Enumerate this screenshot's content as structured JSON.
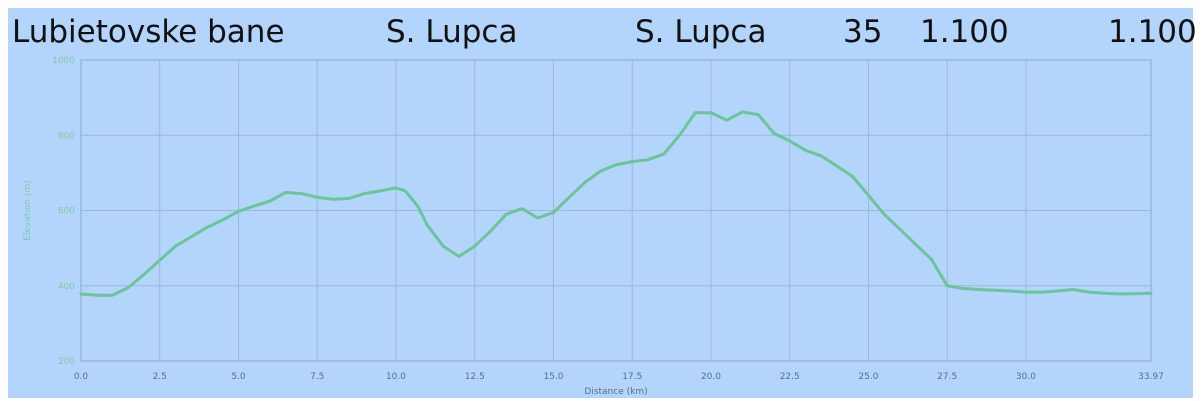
{
  "header": {
    "start": "Lubietovske bane",
    "via": "S. Lupca",
    "end": "S. Lupca",
    "distance": "35",
    "ascent": "1.100",
    "descent": "1.100"
  },
  "colors": {
    "background": "#b3d4fb",
    "line": "#6cc49a",
    "grid": "#8fa6c4"
  },
  "chart_data": {
    "type": "line",
    "xlabel": "Distance (km)",
    "ylabel": "Elevation (m)",
    "xlim": [
      0,
      33.97
    ],
    "ylim": [
      200,
      1000
    ],
    "xticks": [
      0,
      2.5,
      5,
      7.5,
      10,
      12.5,
      15,
      17.5,
      20,
      22.5,
      25,
      27.5,
      30,
      33.97
    ],
    "xtick_labels": [
      "0.0",
      "2.5",
      "5.0",
      "7.5",
      "10.0",
      "12.5",
      "15.0",
      "17.5",
      "20.0",
      "22.5",
      "25.0",
      "27.5",
      "30.0",
      "33.97"
    ],
    "yticks": [
      200,
      400,
      600,
      800,
      1000
    ],
    "ytick_labels": [
      "200",
      "400",
      "600",
      "800",
      "1000"
    ],
    "grid": true,
    "series": [
      {
        "x": [
          0,
          0.5,
          1,
          1.5,
          2,
          2.5,
          3,
          3.5,
          4,
          4.5,
          5,
          5.5,
          6,
          6.5,
          7,
          7.5,
          8,
          8.5,
          9,
          9.5,
          10,
          10.3,
          10.7,
          11,
          11.5,
          12,
          12.5,
          13,
          13.5,
          14,
          14.5,
          15,
          15.5,
          16,
          16.5,
          17,
          17.5,
          18,
          18.5,
          19,
          19.5,
          20,
          20.5,
          21,
          21.5,
          22,
          22.5,
          23,
          23.5,
          24,
          24.5,
          25,
          25.5,
          26,
          26.5,
          27,
          27.5,
          28,
          28.5,
          29,
          29.5,
          30,
          30.5,
          31,
          31.5,
          32,
          32.5,
          33,
          33.97
        ],
        "y": [
          378,
          375,
          375,
          395,
          430,
          468,
          505,
          530,
          555,
          575,
          598,
          612,
          625,
          648,
          645,
          635,
          630,
          632,
          645,
          652,
          660,
          652,
          610,
          560,
          505,
          478,
          505,
          545,
          590,
          605,
          580,
          595,
          635,
          675,
          705,
          722,
          730,
          735,
          750,
          800,
          860,
          860,
          840,
          862,
          855,
          805,
          785,
          760,
          745,
          718,
          690,
          640,
          590,
          550,
          510,
          470,
          400,
          393,
          390,
          388,
          386,
          383,
          383,
          386,
          390,
          383,
          380,
          378,
          380
        ]
      }
    ]
  }
}
